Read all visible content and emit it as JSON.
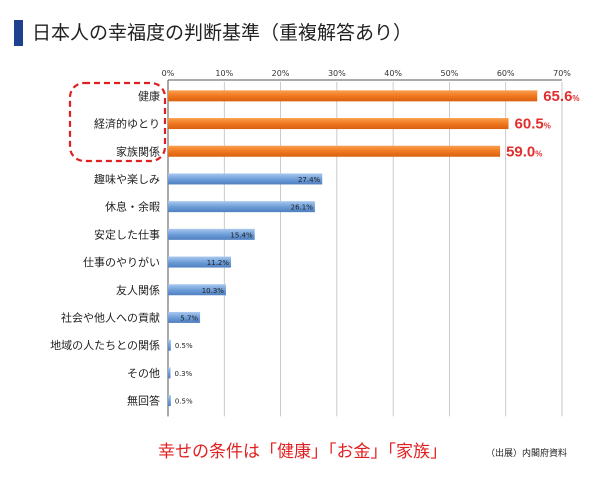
{
  "title": "日本人の幸福度の判断基準（重複解答あり）",
  "caption": "幸せの条件は「健康」「お金」「家族」",
  "source": "（出展）内閣府資料",
  "colors": {
    "highlight_bar": "#f07820",
    "normal_bar": "#6f9fd8",
    "highlight_label": "#e03030",
    "dashed_box": "#e02020",
    "title_accent": "#1f3f8f"
  },
  "chart_data": {
    "type": "bar",
    "orientation": "horizontal",
    "xlim": [
      0,
      70
    ],
    "x_ticks": [
      "0%",
      "10%",
      "20%",
      "30%",
      "40%",
      "50%",
      "60%",
      "70%"
    ],
    "grid": true,
    "categories": [
      "健康",
      "経済的ゆとり",
      "家族関係",
      "趣味や楽しみ",
      "休息・余暇",
      "安定した仕事",
      "仕事のやりがい",
      "友人関係",
      "社会や他人への貢献",
      "地域の人たちとの関係",
      "その他",
      "無回答"
    ],
    "values": [
      65.6,
      60.5,
      59.0,
      27.4,
      26.1,
      15.4,
      11.2,
      10.3,
      5.7,
      0.5,
      0.3,
      0.5
    ],
    "value_labels": [
      "65.6%",
      "60.5%",
      "59.0%",
      "27.4%",
      "26.1%",
      "15.4%",
      "11.2%",
      "10.3%",
      "5.7%",
      "0.5%",
      "0.3%",
      "0.5%"
    ],
    "highlighted": [
      true,
      true,
      true,
      false,
      false,
      false,
      false,
      false,
      false,
      false,
      false,
      false
    ]
  }
}
